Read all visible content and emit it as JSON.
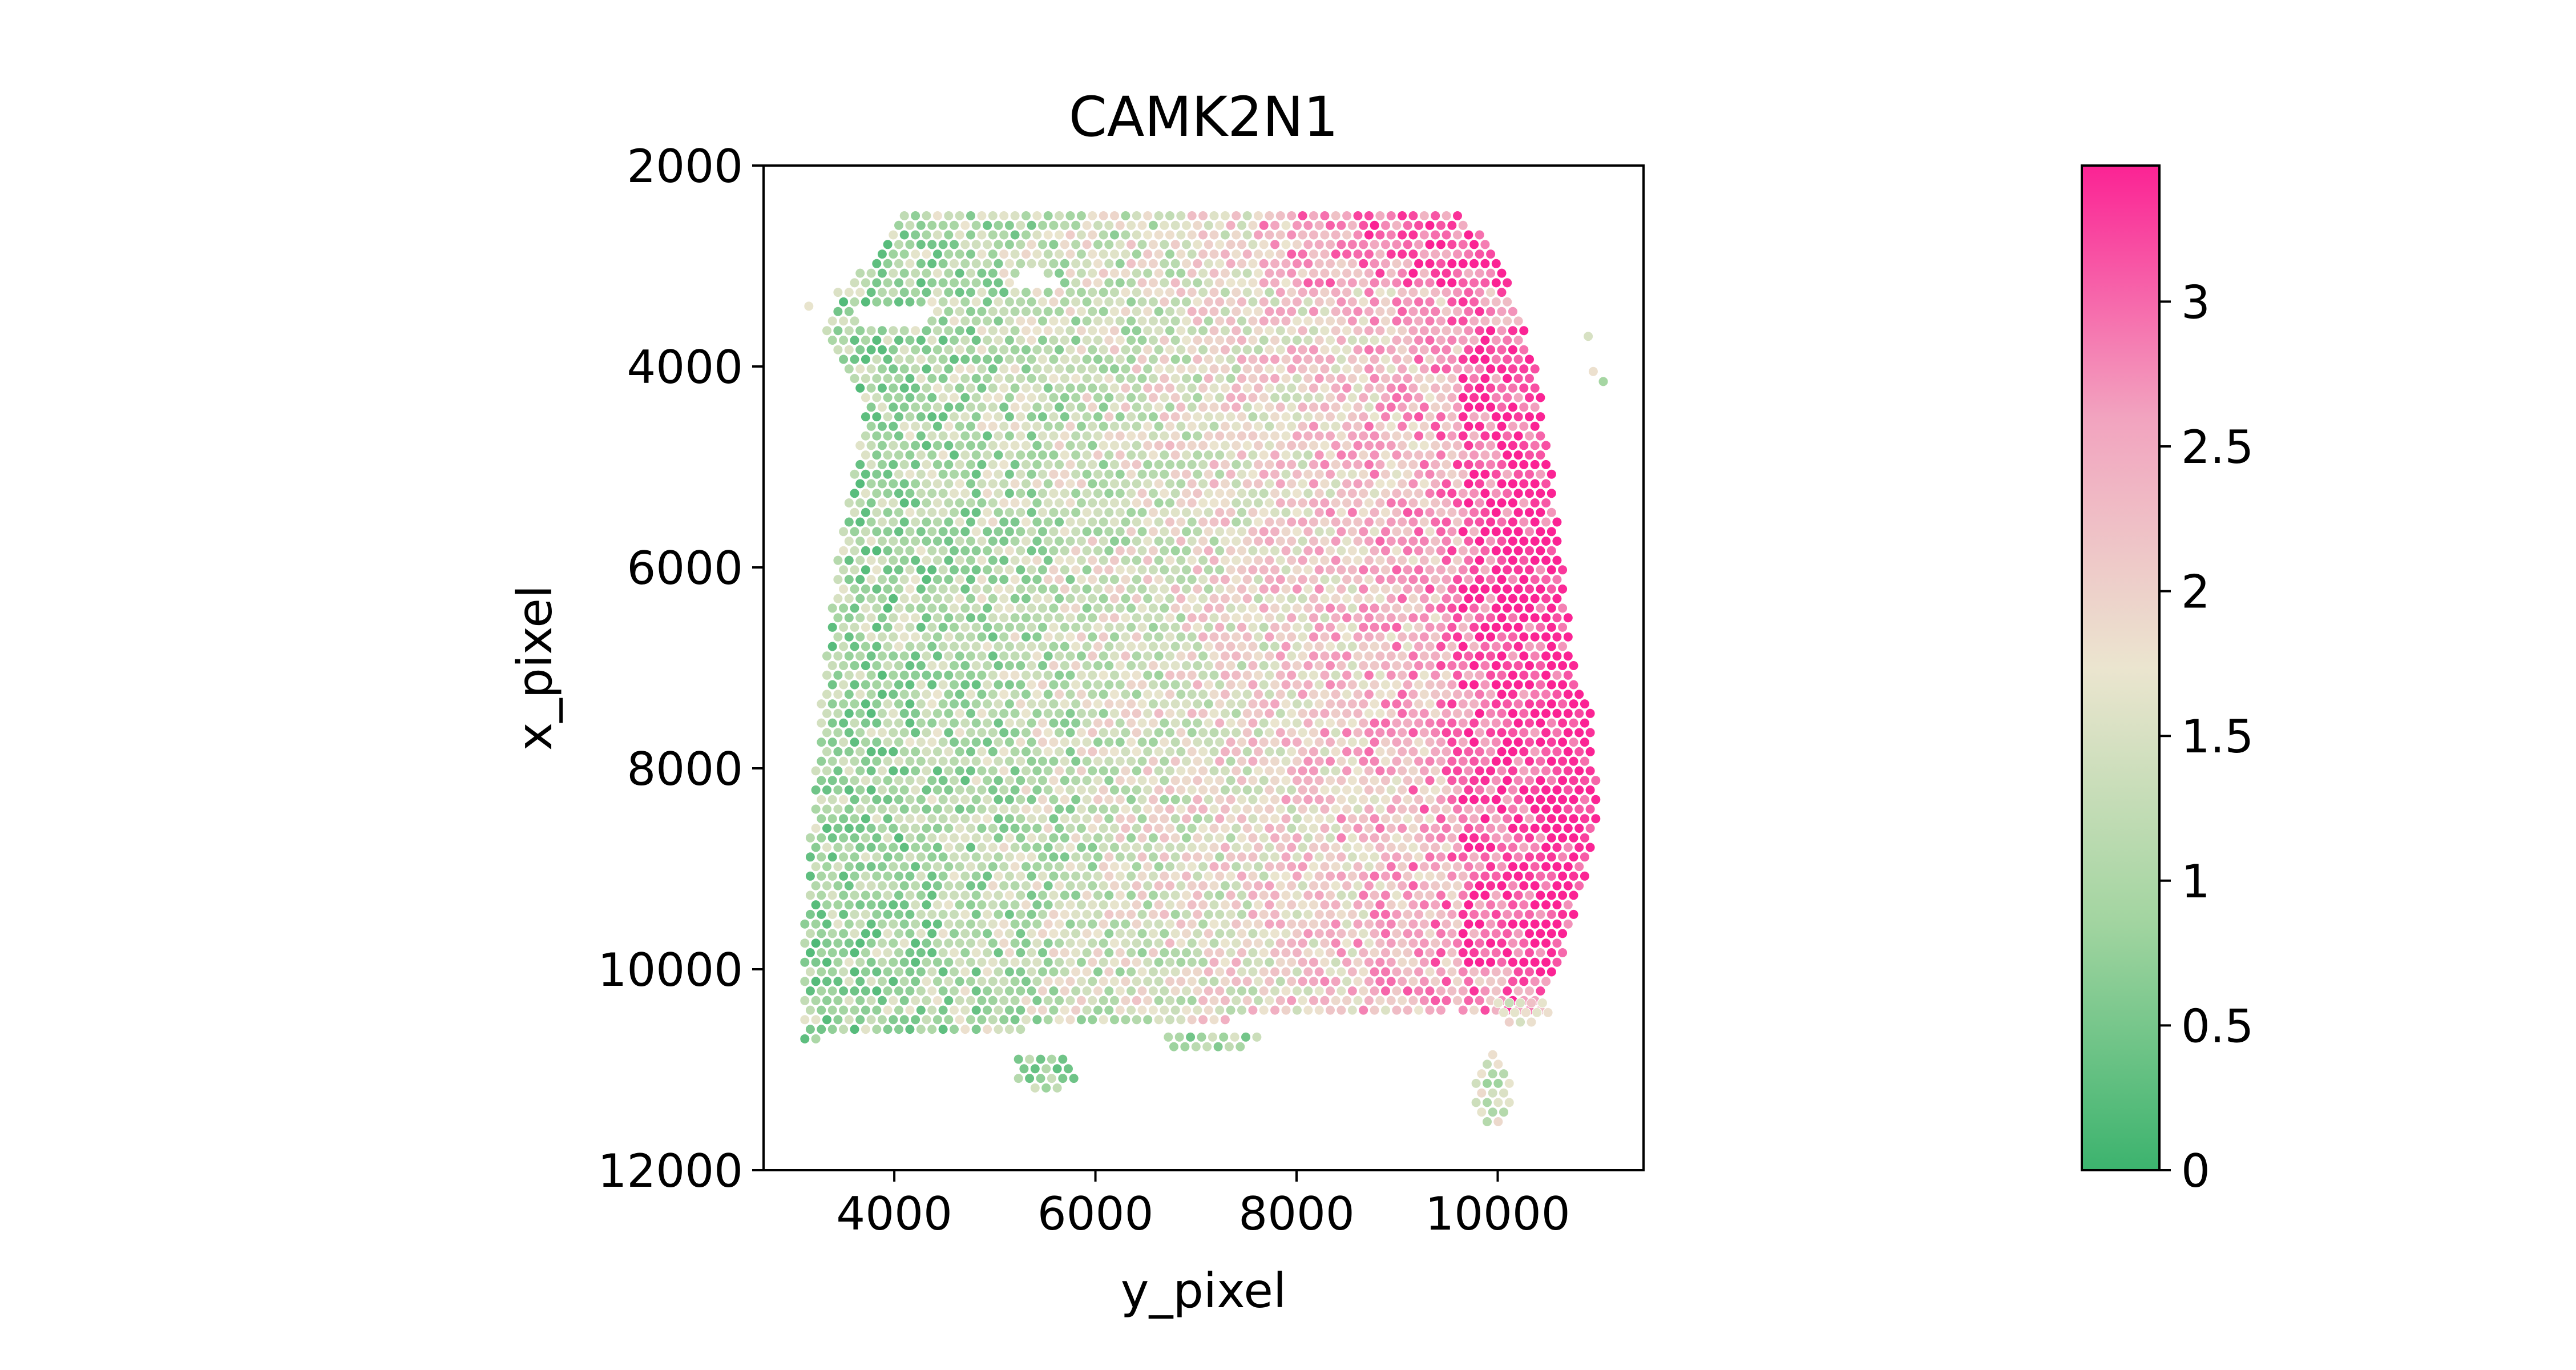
{
  "chart_data": {
    "type": "scatter",
    "title": "CAMK2N1",
    "xlabel": "y_pixel",
    "ylabel": "x_pixel",
    "xlim": [
      2700,
      11450
    ],
    "ylim": [
      12000,
      2000
    ],
    "y_inverted": true,
    "x_ticks": [
      4000,
      6000,
      8000,
      10000
    ],
    "x_tick_labels": [
      "4000",
      "6000",
      "8000",
      "10000"
    ],
    "y_ticks": [
      2000,
      4000,
      6000,
      8000,
      10000,
      12000
    ],
    "y_tick_labels": [
      "2000",
      "4000",
      "6000",
      "8000",
      "10000",
      "12000"
    ],
    "grid": false,
    "legend": "none",
    "spot_spacing": 110,
    "tissue_outline": [
      [
        4050,
        2500
      ],
      [
        9700,
        2500
      ],
      [
        10100,
        3100
      ],
      [
        10400,
        4100
      ],
      [
        10600,
        5500
      ],
      [
        10750,
        6900
      ],
      [
        10950,
        7500
      ],
      [
        11000,
        8400
      ],
      [
        10800,
        9400
      ],
      [
        10700,
        9700
      ],
      [
        10400,
        10500
      ],
      [
        9800,
        10500
      ],
      [
        9600,
        10400
      ],
      [
        3100,
        10700
      ],
      [
        3100,
        9500
      ],
      [
        3300,
        7000
      ],
      [
        3450,
        5800
      ],
      [
        3700,
        4500
      ],
      [
        3600,
        4100
      ],
      [
        3300,
        3700
      ],
      [
        3400,
        3300
      ],
      [
        3800,
        2900
      ],
      [
        4000,
        2600
      ]
    ],
    "excluded_regions": [
      {
        "center": [
          4000,
          3500
        ],
        "radius": [
          400,
          130
        ]
      },
      {
        "center": [
          5400,
          3150
        ],
        "radius": [
          200,
          100
        ]
      }
    ],
    "satellite_clusters": [
      {
        "center": [
          5500,
          11000
        ],
        "radius": [
          320,
          200
        ],
        "level": 0.9
      },
      {
        "center": [
          7150,
          10700
        ],
        "radius": [
          480,
          120
        ],
        "level": 1.0
      },
      {
        "center": [
          9950,
          11200
        ],
        "radius": [
          220,
          350
        ],
        "level": 1.3
      },
      {
        "center": [
          10250,
          10400
        ],
        "radius": [
          300,
          160
        ],
        "level": 1.7
      }
    ],
    "outlier_spots": [
      {
        "x": 10900,
        "y": 3700,
        "level": 1.5
      },
      {
        "x": 10950,
        "y": 4050,
        "level": 1.8
      },
      {
        "x": 11050,
        "y": 4150,
        "level": 0.9
      },
      {
        "x": 3150,
        "y": 3400,
        "level": 1.7
      }
    ],
    "expression_gradient": {
      "description_free": true,
      "low_value_left": 0.9,
      "high_value_right": 3.2,
      "noise": 0.75
    },
    "colorbar": {
      "min": 0,
      "max": 3.47,
      "ticks": [
        0,
        0.5,
        1,
        1.5,
        2,
        2.5,
        3
      ],
      "tick_labels": [
        "0",
        "0.5",
        "1",
        "1.5",
        "2",
        "2.5",
        "3"
      ],
      "colors": [
        {
          "stop": 0.0,
          "color": "#3cb36e"
        },
        {
          "stop": 0.25,
          "color": "#a3d5a1"
        },
        {
          "stop": 0.5,
          "color": "#ebe5cf"
        },
        {
          "stop": 0.75,
          "color": "#f2a3bf"
        },
        {
          "stop": 1.0,
          "color": "#fb2394"
        }
      ]
    },
    "spot_edge_color": "#ffffff"
  }
}
